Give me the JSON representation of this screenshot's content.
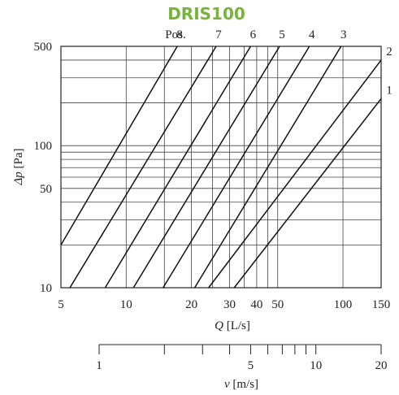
{
  "chart_data": {
    "type": "line",
    "title": "DRIS100",
    "title_color": "#78b43c",
    "xlabel": "Q [L/s]",
    "ylabel": "Δp [Pa]",
    "xscale": "log",
    "yscale": "log",
    "xlim": [
      5,
      150
    ],
    "ylim": [
      10,
      500
    ],
    "x_ticks": [
      5,
      10,
      20,
      30,
      40,
      50,
      100,
      150
    ],
    "y_ticks": [
      10,
      50,
      100,
      500
    ],
    "x_minor_grid": [
      5,
      10,
      15,
      20,
      25,
      30,
      35,
      40,
      45,
      50,
      100,
      150
    ],
    "y_minor_grid": [
      10,
      20,
      30,
      40,
      50,
      60,
      70,
      80,
      90,
      100,
      200,
      300,
      400,
      500
    ],
    "grid": true,
    "series_label_prefix": "Pos.",
    "series": [
      {
        "name": "8",
        "points": [
          [
            5,
            20
          ],
          [
            17.2,
            500
          ]
        ]
      },
      {
        "name": "7",
        "points": [
          [
            5.5,
            10
          ],
          [
            26,
            500
          ]
        ]
      },
      {
        "name": "6",
        "points": [
          [
            8,
            10
          ],
          [
            37.5,
            500
          ]
        ]
      },
      {
        "name": "5",
        "points": [
          [
            10.8,
            10
          ],
          [
            51,
            500
          ]
        ]
      },
      {
        "name": "4",
        "points": [
          [
            14.8,
            10
          ],
          [
            70,
            500
          ]
        ]
      },
      {
        "name": "3",
        "points": [
          [
            20.7,
            10
          ],
          [
            98,
            500
          ]
        ]
      },
      {
        "name": "2",
        "points": [
          [
            24,
            10
          ],
          [
            150,
            400
          ]
        ]
      },
      {
        "name": "1",
        "points": [
          [
            31.5,
            10
          ],
          [
            150,
            214
          ]
        ]
      }
    ],
    "secondary_axis": {
      "xlabel": "v [m/s]",
      "ticks": [
        1,
        5,
        10,
        20
      ],
      "minor_ticks": [
        1,
        2,
        3,
        4,
        5,
        6,
        7,
        8,
        9,
        10,
        20
      ],
      "range": [
        1,
        20
      ]
    }
  }
}
